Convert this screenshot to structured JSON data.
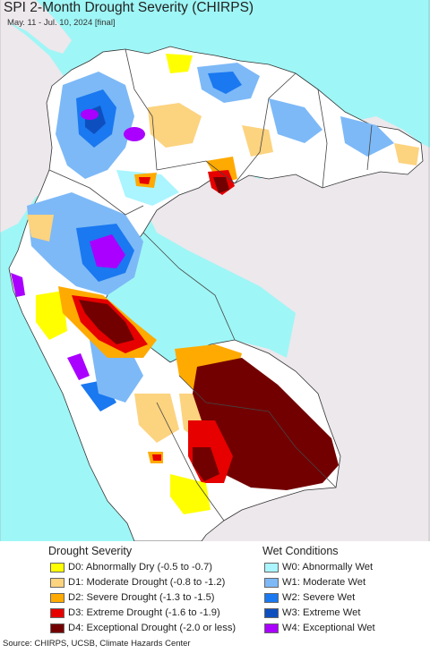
{
  "title": "SPI 2-Month Drought Severity (CHIRPS)",
  "subtitle": "May. 11 - Jul. 10, 2024 [final]",
  "colors": {
    "ocean": "#9ff6f6",
    "outside_land": "#ece8ec",
    "normal_land": "#ffffff"
  },
  "legend": {
    "drought_title": "Drought Severity",
    "wet_title": "Wet Conditions",
    "drought": [
      {
        "label": "D0: Abnormally Dry (-0.5 to -0.7)",
        "color": "#ffff00"
      },
      {
        "label": "D1: Moderate Drought (-0.8 to -1.2)",
        "color": "#fcd37f"
      },
      {
        "label": "D2: Severe Drought (-1.3 to -1.5)",
        "color": "#ffaa00"
      },
      {
        "label": "D3: Extreme Drought (-1.6 to -1.9)",
        "color": "#e60000"
      },
      {
        "label": "D4: Exceptional Drought (-2.0 or less)",
        "color": "#730000"
      }
    ],
    "wet": [
      {
        "label": "W0: Abnormally Wet",
        "color": "#aaf5ff"
      },
      {
        "label": "W1: Moderate Wet",
        "color": "#7db9f7"
      },
      {
        "label": "W2: Severe Wet",
        "color": "#1a78f0"
      },
      {
        "label": "W3: Extreme Wet",
        "color": "#0e4fbf"
      },
      {
        "label": "W4: Exceptional Wet",
        "color": "#aa00ff"
      }
    ]
  },
  "source": "Source: CHIRPS, UCSB, Climate Hazards Center"
}
